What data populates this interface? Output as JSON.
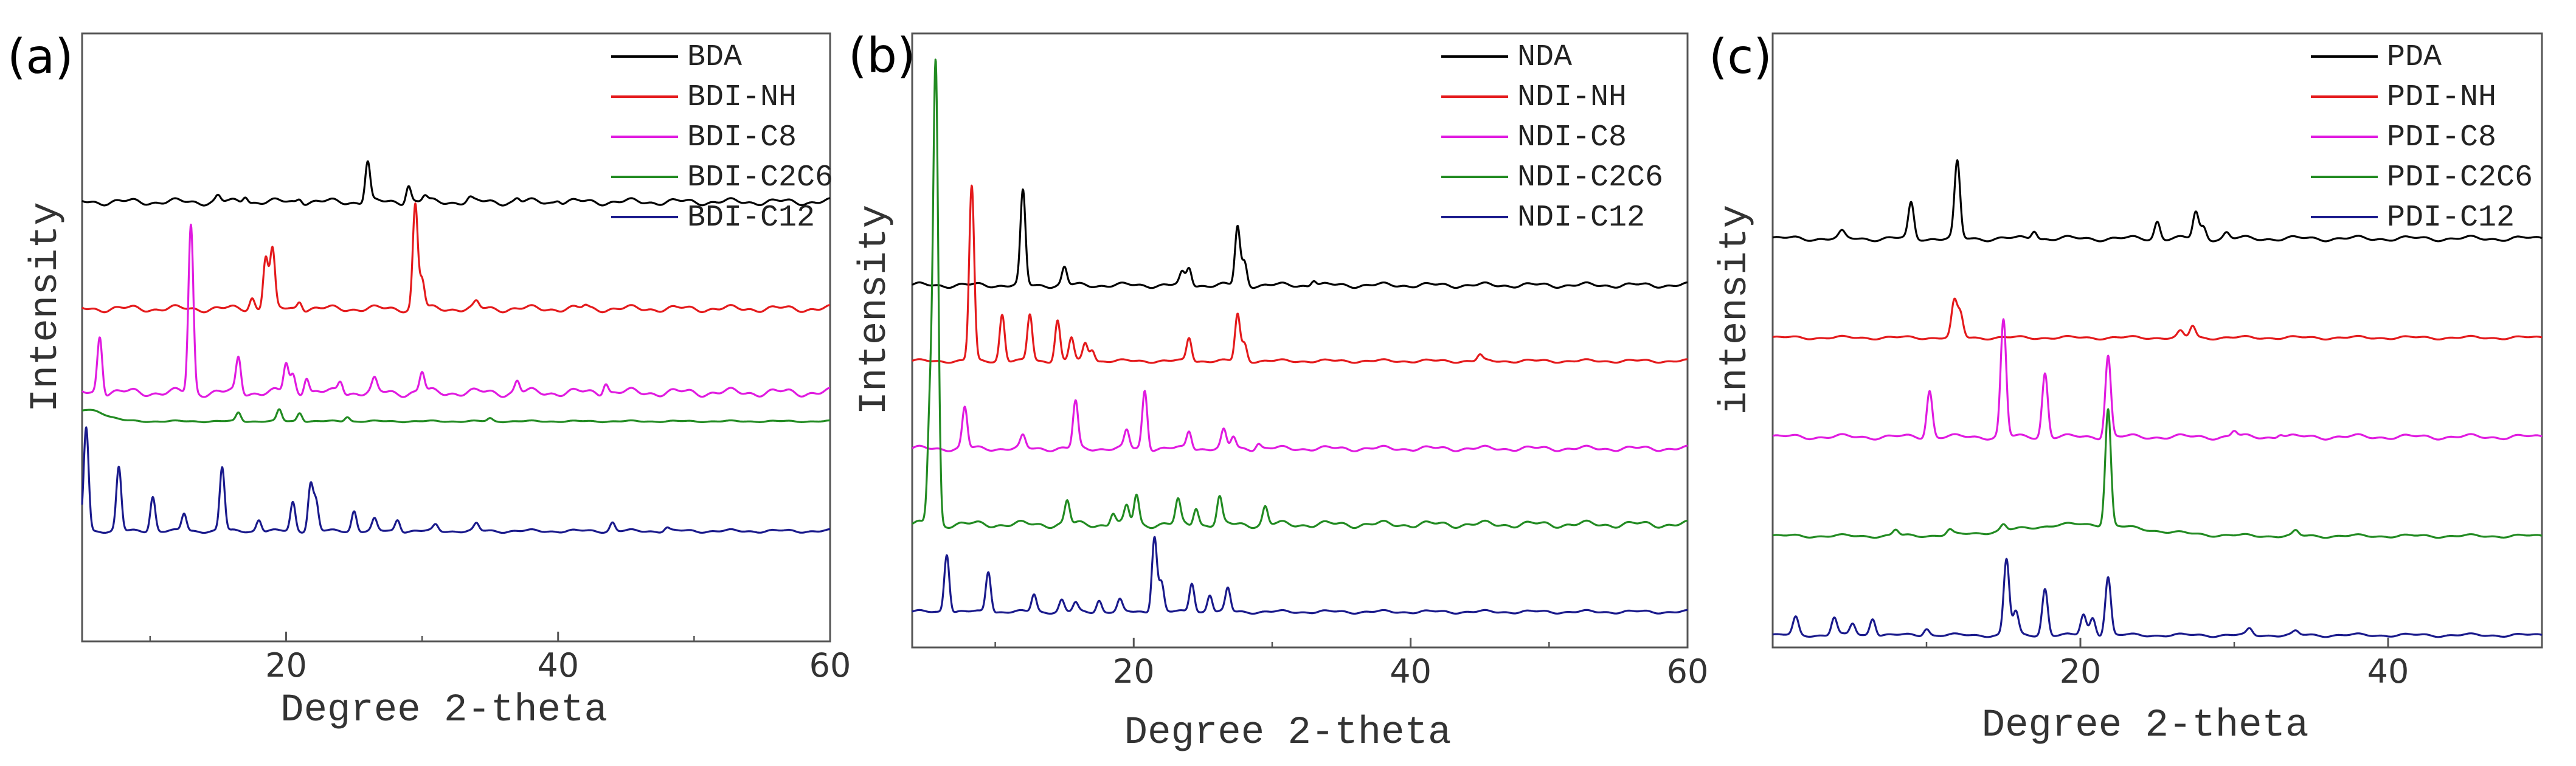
{
  "chart_data": [
    {
      "type": "line",
      "panel_label": "(a)",
      "xlabel": "Degree 2-theta",
      "ylabel": "Intensity",
      "xlim": [
        5,
        60
      ],
      "xticks": [
        20,
        40,
        60
      ],
      "legend_position": "top-right",
      "series": [
        {
          "name": "BDA",
          "color": "#000000",
          "baseline": 0.74,
          "slope": 0.004,
          "peaks": [
            [
              15,
              0.01
            ],
            [
              17,
              0.012
            ],
            [
              21,
              0.008
            ],
            [
              26,
              0.07
            ],
            [
              29,
              0.03
            ],
            [
              30.2,
              0.01
            ],
            [
              33.5,
              0.006
            ],
            [
              37,
              0.006
            ],
            [
              40,
              0.005
            ]
          ]
        },
        {
          "name": "BDI-NH",
          "color": "#e41a1c",
          "baseline": 0.555,
          "slope": 0.004,
          "peaks": [
            [
              17.5,
              0.02
            ],
            [
              18.5,
              0.09
            ],
            [
              19,
              0.1
            ],
            [
              21,
              0.015
            ],
            [
              29.5,
              0.18
            ],
            [
              30,
              0.05
            ],
            [
              34,
              0.01
            ],
            [
              42,
              0.005
            ]
          ]
        },
        {
          "name": "BDI-C8",
          "color": "#e01be0",
          "baseline": 0.41,
          "slope": 0.005,
          "peaks": [
            [
              6.3,
              0.1
            ],
            [
              13,
              0.29
            ],
            [
              16.5,
              0.06
            ],
            [
              20,
              0.05
            ],
            [
              20.5,
              0.03
            ],
            [
              21.5,
              0.03
            ],
            [
              24,
              0.02
            ],
            [
              26.5,
              0.02
            ],
            [
              30,
              0.035
            ],
            [
              37,
              0.02
            ],
            [
              43.5,
              0.02
            ]
          ]
        },
        {
          "name": "BDI-C2C6",
          "color": "#228b22",
          "baseline": 0.36,
          "slope": 0.001,
          "hump": [
            5.5,
            0.02,
            1.2
          ],
          "peaks": [
            [
              16.5,
              0.015
            ],
            [
              19.5,
              0.02
            ],
            [
              21,
              0.015
            ],
            [
              24.5,
              0.008
            ],
            [
              35,
              0.005
            ]
          ]
        },
        {
          "name": "BDI-C12",
          "color": "#1a1a8c",
          "baseline": 0.17,
          "slope": 0.002,
          "peaks": [
            [
              5.3,
              0.18
            ],
            [
              7.7,
              0.11
            ],
            [
              10.2,
              0.06
            ],
            [
              12.5,
              0.03
            ],
            [
              15.3,
              0.11
            ],
            [
              18,
              0.02
            ],
            [
              20.5,
              0.05
            ],
            [
              21.8,
              0.08
            ],
            [
              22.2,
              0.05
            ],
            [
              25,
              0.035
            ],
            [
              26.5,
              0.02
            ],
            [
              28.2,
              0.02
            ],
            [
              31,
              0.01
            ],
            [
              34,
              0.012
            ],
            [
              44,
              0.015
            ],
            [
              48,
              0.006
            ]
          ]
        }
      ]
    },
    {
      "type": "line",
      "panel_label": "(b)",
      "xlabel": "Degree 2-theta",
      "ylabel": "Intensity",
      "xlim": [
        4,
        60
      ],
      "xticks": [
        20,
        40,
        60
      ],
      "legend_position": "top-right",
      "series": [
        {
          "name": "NDA",
          "color": "#000000",
          "baseline": 0.6,
          "slope": 0.003,
          "peaks": [
            [
              12,
              0.16
            ],
            [
              15,
              0.03
            ],
            [
              23.5,
              0.02
            ],
            [
              24,
              0.03
            ],
            [
              27.5,
              0.1
            ],
            [
              28,
              0.04
            ],
            [
              33,
              0.01
            ]
          ]
        },
        {
          "name": "NDI-NH",
          "color": "#e41a1c",
          "baseline": 0.47,
          "slope": 0.002,
          "peaks": [
            [
              8.3,
              0.3
            ],
            [
              10.5,
              0.08
            ],
            [
              12.5,
              0.08
            ],
            [
              14.5,
              0.07
            ],
            [
              15.5,
              0.04
            ],
            [
              16.5,
              0.03
            ],
            [
              17,
              0.02
            ],
            [
              24,
              0.04
            ],
            [
              27.5,
              0.08
            ],
            [
              28,
              0.03
            ],
            [
              45,
              0.01
            ]
          ]
        },
        {
          "name": "NDI-C8",
          "color": "#e01be0",
          "baseline": 0.32,
          "slope": 0.003,
          "peaks": [
            [
              7.8,
              0.07
            ],
            [
              12,
              0.02
            ],
            [
              15.8,
              0.08
            ],
            [
              19.5,
              0.03
            ],
            [
              20.8,
              0.1
            ],
            [
              24,
              0.03
            ],
            [
              26.5,
              0.03
            ],
            [
              27.2,
              0.02
            ],
            [
              29,
              0.01
            ]
          ]
        },
        {
          "name": "NDI-C2C6",
          "color": "#228b22",
          "baseline": 0.19,
          "slope": 0.004,
          "peaks": [
            [
              5.7,
              0.78
            ],
            [
              5.3,
              0.2
            ],
            [
              15.2,
              0.04
            ],
            [
              18.5,
              0.02
            ],
            [
              19.5,
              0.03
            ],
            [
              20.2,
              0.05
            ],
            [
              23.2,
              0.04
            ],
            [
              24.5,
              0.03
            ],
            [
              26.2,
              0.045
            ],
            [
              29.5,
              0.03
            ]
          ]
        },
        {
          "name": "NDI-C12",
          "color": "#1a1a8c",
          "baseline": 0.04,
          "slope": 0.002,
          "peaks": [
            [
              6.5,
              0.1
            ],
            [
              9.5,
              0.07
            ],
            [
              12.8,
              0.03
            ],
            [
              14.8,
              0.02
            ],
            [
              15.8,
              0.015
            ],
            [
              17.5,
              0.02
            ],
            [
              19,
              0.02
            ],
            [
              21.5,
              0.13
            ],
            [
              22,
              0.05
            ],
            [
              24.2,
              0.05
            ],
            [
              25.5,
              0.03
            ],
            [
              26.8,
              0.04
            ]
          ]
        }
      ]
    },
    {
      "type": "line",
      "panel_label": "(c)",
      "xlabel": "Degree 2-theta",
      "ylabel": "intensity",
      "xlim": [
        0,
        50
      ],
      "xticks": [
        20,
        40
      ],
      "legend_position": "top-right",
      "series": [
        {
          "name": "PDA",
          "color": "#000000",
          "baseline": 0.68,
          "slope": 0.003,
          "peaks": [
            [
              4.5,
              0.01
            ],
            [
              9,
              0.06
            ],
            [
              12,
              0.13
            ],
            [
              17,
              0.015
            ],
            [
              25,
              0.03
            ],
            [
              27.5,
              0.045
            ],
            [
              28,
              0.02
            ],
            [
              29.5,
              0.01
            ]
          ]
        },
        {
          "name": "PDI-NH",
          "color": "#e41a1c",
          "baseline": 0.51,
          "slope": 0.002,
          "peaks": [
            [
              11.8,
              0.06
            ],
            [
              12.2,
              0.04
            ],
            [
              26.5,
              0.01
            ],
            [
              27.3,
              0.02
            ]
          ]
        },
        {
          "name": "PDI-C8",
          "color": "#e01be0",
          "baseline": 0.34,
          "slope": 0.003,
          "peaks": [
            [
              10.2,
              0.08
            ],
            [
              15,
              0.2
            ],
            [
              17.7,
              0.11
            ],
            [
              21.8,
              0.14
            ],
            [
              30,
              0.01
            ],
            [
              33,
              0.006
            ]
          ]
        },
        {
          "name": "PDI-C2C6",
          "color": "#228b22",
          "baseline": 0.17,
          "slope": 0.002,
          "hump": [
            20,
            0.02,
            4
          ],
          "peaks": [
            [
              8,
              0.01
            ],
            [
              11.5,
              0.008
            ],
            [
              15,
              0.01
            ],
            [
              21.8,
              0.2
            ],
            [
              34,
              0.008
            ]
          ]
        },
        {
          "name": "PDI-C12",
          "color": "#1a1a8c",
          "baseline": 0.0,
          "slope": 0.002,
          "peaks": [
            [
              1.5,
              0.03
            ],
            [
              4,
              0.03
            ],
            [
              5.2,
              0.02
            ],
            [
              6.5,
              0.03
            ],
            [
              10,
              0.012
            ],
            [
              15.2,
              0.13
            ],
            [
              15.8,
              0.04
            ],
            [
              17.7,
              0.08
            ],
            [
              20.2,
              0.035
            ],
            [
              20.8,
              0.03
            ],
            [
              21.8,
              0.1
            ],
            [
              31,
              0.01
            ],
            [
              34,
              0.006
            ]
          ]
        }
      ]
    }
  ]
}
